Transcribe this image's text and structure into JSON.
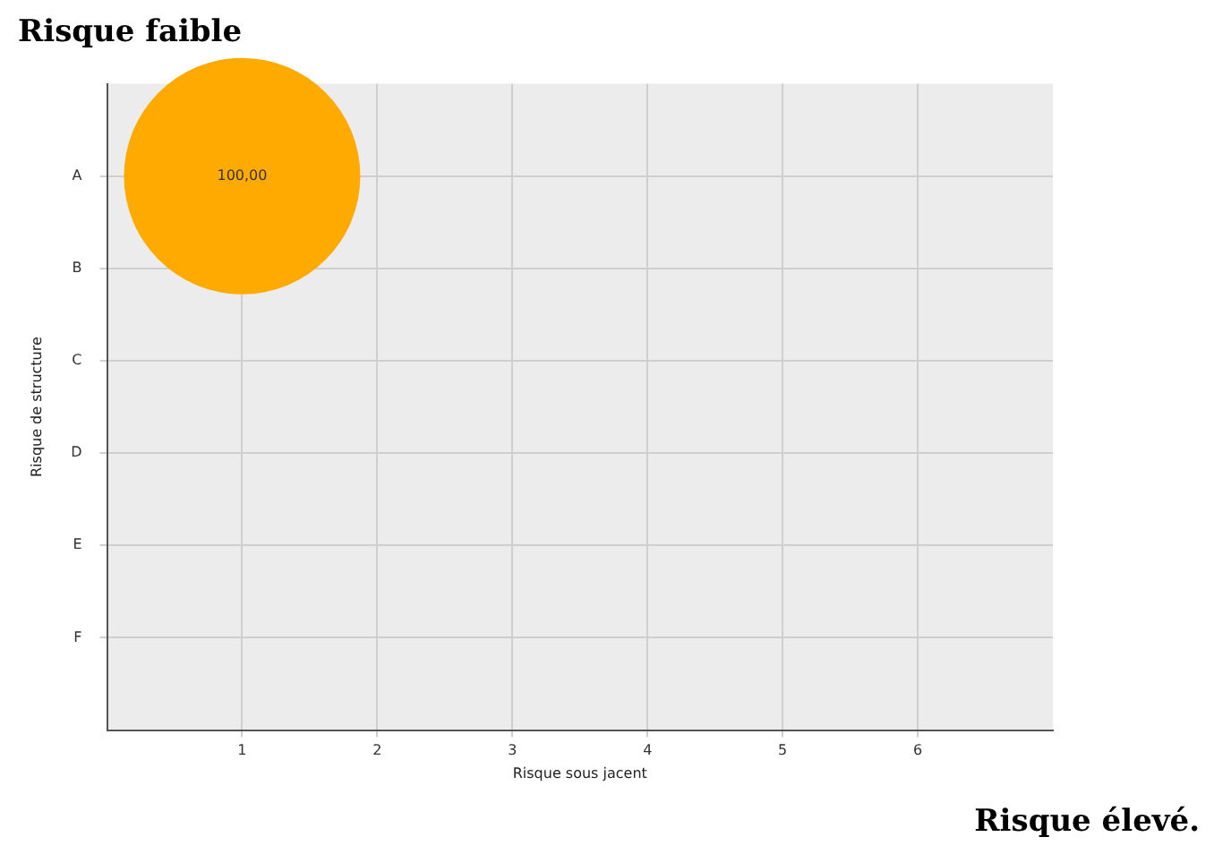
{
  "chart_data": {
    "type": "bubble",
    "orientation": "horizontal",
    "title": "Risque faible",
    "xlabel": "Risque sous jacent",
    "ylabel": "Risque de structure",
    "annotations": [
      "Risque élevé."
    ],
    "categories": [
      null,
      "A",
      "B",
      "C",
      "D",
      "E",
      "F",
      null
    ],
    "values": [
      null,
      1,
      null,
      null,
      null,
      null,
      null,
      null
    ],
    "sizes": [
      null,
      100,
      null,
      null,
      null,
      null,
      null,
      null
    ],
    "value_labels": [
      null,
      "100,00",
      null,
      null,
      null,
      null,
      null,
      null
    ],
    "color": "#ffaa00",
    "xlim": [
      0,
      7
    ],
    "xticks": [
      1,
      2,
      3,
      4,
      5,
      6
    ],
    "grid": true,
    "legend": false
  }
}
